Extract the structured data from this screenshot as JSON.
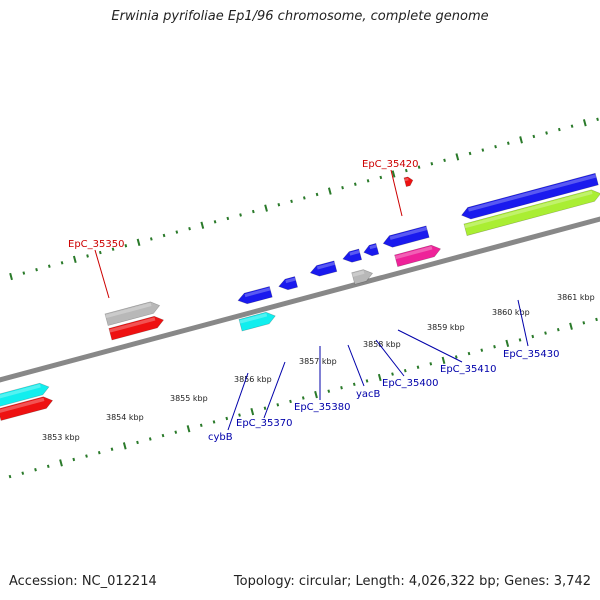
{
  "title": "Erwinia pyrifoliae Ep1/96 chromosome, complete genome",
  "footer": {
    "accession": "Accession: NC_012214",
    "summary": "Topology: circular; Length: 4,026,322 bp; Genes: 3,742"
  },
  "axis": {
    "tick_labels": [
      "3853 kbp",
      "3854 kbp",
      "3855 kbp",
      "3856 kbp",
      "3857 kbp",
      "3858 kbp",
      "3859 kbp",
      "3860 kbp",
      "3861 kbp"
    ]
  },
  "gene_labels": {
    "EpC_35420": "EpC_35420",
    "EpC_35350": "EpC_35350",
    "cybB": "cybB",
    "EpC_35370": "EpC_35370",
    "EpC_35380": "EpC_35380",
    "yacB": "yacB",
    "EpC_35400": "EpC_35400",
    "EpC_35410": "EpC_35410",
    "EpC_35430": "EpC_35430"
  },
  "colors": {
    "forward_label": "#cc0000",
    "reverse_label": "#0000aa",
    "blue": "#1a1aee",
    "red": "#ee1111",
    "cyan": "#11eeee",
    "gray": "#b8b8b8",
    "magenta": "#ee2299",
    "lime": "#aaee33",
    "axis": "#888888",
    "tick": "#2a7a2a"
  }
}
